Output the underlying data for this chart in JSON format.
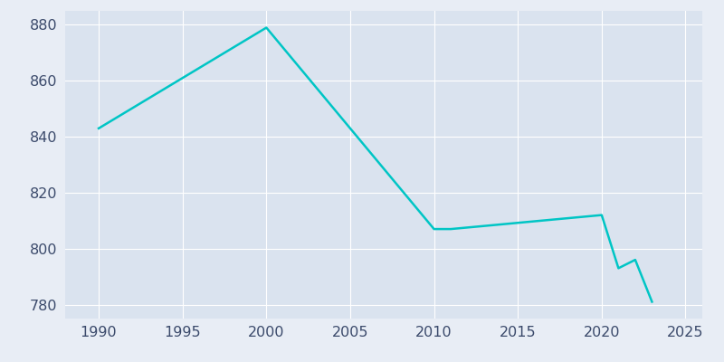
{
  "years": [
    1990,
    2000,
    2010,
    2011,
    2020,
    2021,
    2022,
    2023
  ],
  "population": [
    843,
    879,
    807,
    807,
    812,
    793,
    796,
    781
  ],
  "line_color": "#00C5C5",
  "bg_color": "#E8EDF5",
  "plot_bg_color": "#DAE3EF",
  "xlim": [
    1988,
    2026
  ],
  "ylim": [
    775,
    885
  ],
  "xticks": [
    1990,
    1995,
    2000,
    2005,
    2010,
    2015,
    2020,
    2025
  ],
  "yticks": [
    780,
    800,
    820,
    840,
    860,
    880
  ],
  "grid_color": "#FFFFFF",
  "line_width": 1.8,
  "tick_color": "#3B4A6B",
  "tick_fontsize": 11.5
}
